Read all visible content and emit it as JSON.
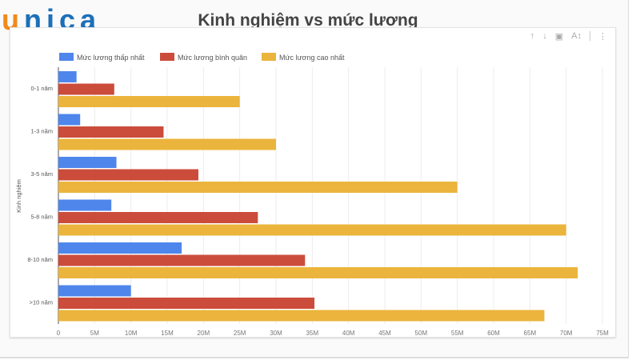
{
  "logo": "unica",
  "toolbar": {
    "icons": [
      "arrow-up-icon",
      "arrow-down-icon",
      "export-icon",
      "sort-az-icon",
      "more-vert-icon"
    ]
  },
  "chart_data": {
    "type": "bar",
    "orientation": "horizontal",
    "title": "Kinh nghiệm vs mức lương",
    "ylabel": "Kinh nghiệm",
    "xlabel": "",
    "categories": [
      "0-1 năm",
      "1-3 năm",
      "3-5 năm",
      "5-8 năm",
      "8-10 năm",
      ">10 năm"
    ],
    "series": [
      {
        "name": "Mức lương thấp nhất",
        "color": "#4f86ec",
        "values": [
          2500000,
          3000000,
          8000000,
          7300000,
          17000000,
          10000000
        ]
      },
      {
        "name": "Mức lương bình quân",
        "color": "#cc4c3b",
        "values": [
          7700000,
          14500000,
          19300000,
          27500000,
          34000000,
          35300000
        ]
      },
      {
        "name": "Mức lương cao nhất",
        "color": "#ebb43c",
        "values": [
          25000000,
          30000000,
          55000000,
          70000000,
          71600000,
          67000000
        ]
      }
    ],
    "xlim": [
      0,
      75000000
    ],
    "xticks": [
      "0",
      "5M",
      "10M",
      "15M",
      "20M",
      "25M",
      "30M",
      "35M",
      "40M",
      "45M",
      "50M",
      "55M",
      "60M",
      "65M",
      "70M",
      "75M"
    ],
    "grid": true,
    "legend": "top-left"
  }
}
